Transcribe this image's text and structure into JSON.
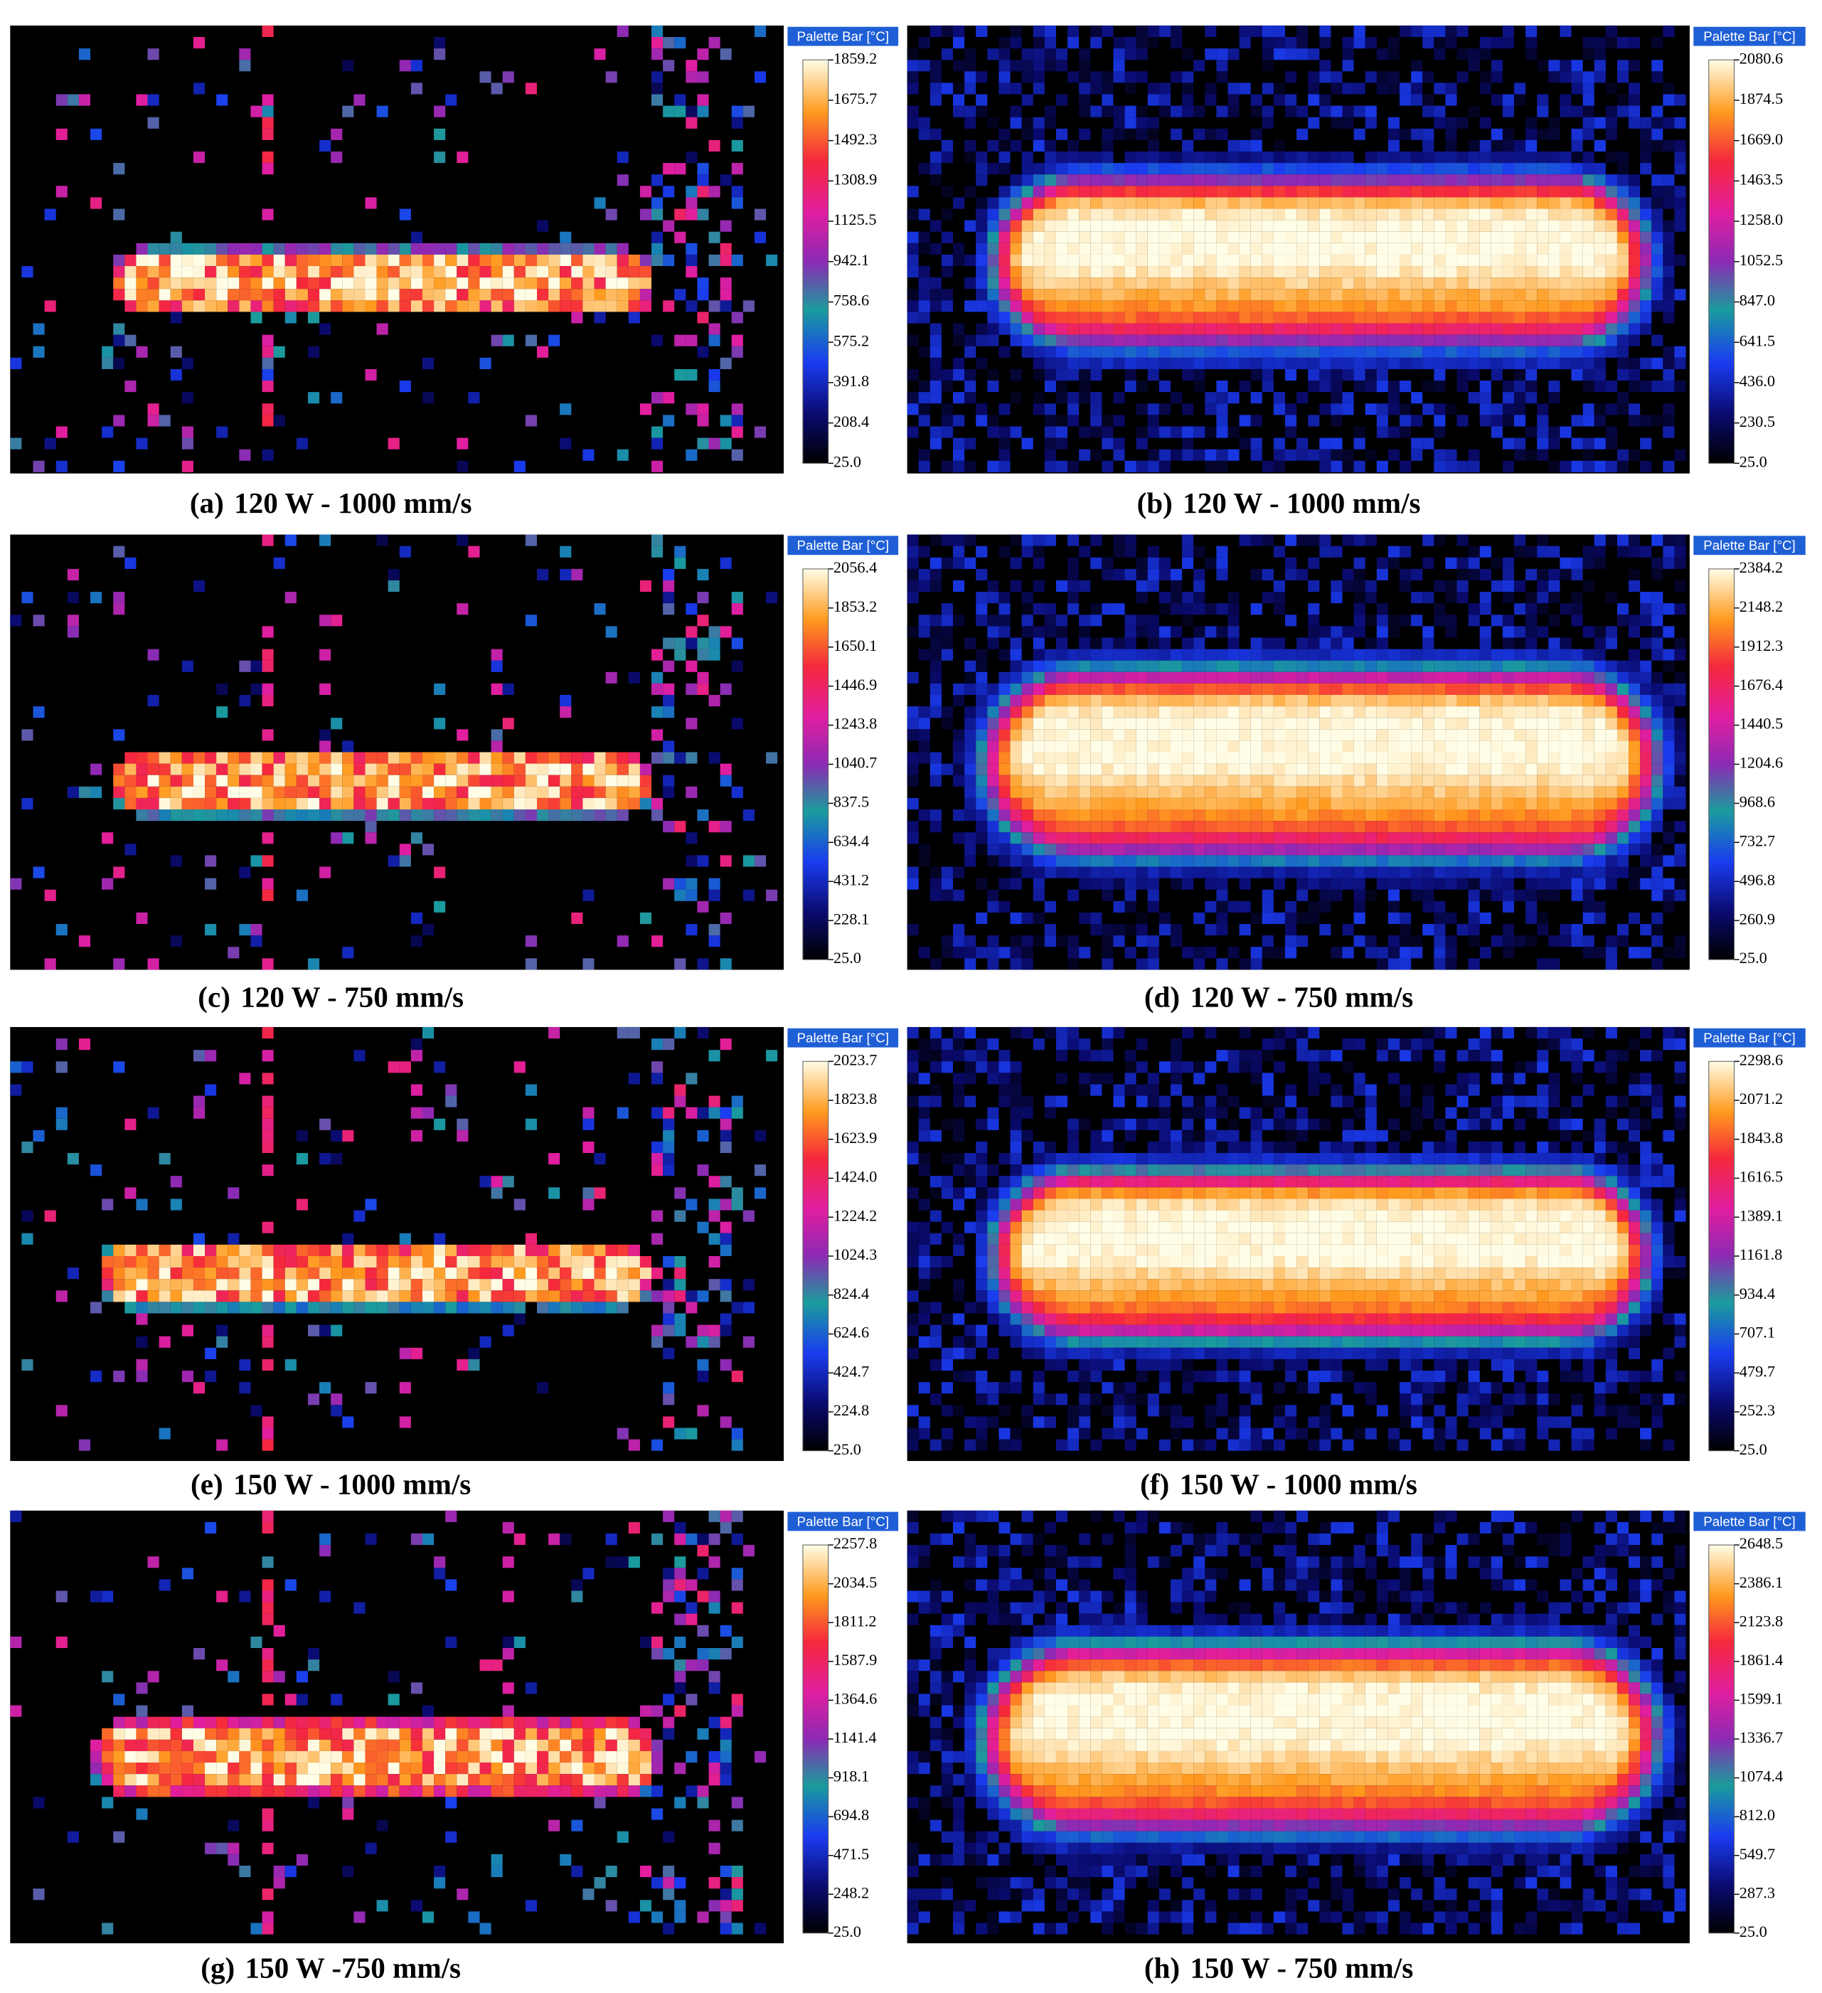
{
  "figure": {
    "panels": [
      {
        "label": "(a)",
        "caption": "120 W - 1000 mm/s",
        "palette_title": "Palette Bar [°C]",
        "ticks": [
          "1859.2",
          "1675.7",
          "1492.3",
          "1308.9",
          "1125.5",
          "942.1",
          "758.6",
          "575.2",
          "391.8",
          "208.4",
          "25.0"
        ]
      },
      {
        "label": "(b)",
        "caption": "120 W - 1000 mm/s",
        "palette_title": "Palette Bar [°C]",
        "ticks": [
          "2080.6",
          "1874.5",
          "1669.0",
          "1463.5",
          "1258.0",
          "1052.5",
          "847.0",
          "641.5",
          "436.0",
          "230.5",
          "25.0"
        ]
      },
      {
        "label": "(c)",
        "caption": "120 W - 750 mm/s",
        "palette_title": "Palette Bar [°C]",
        "ticks": [
          "2056.4",
          "1853.2",
          "1650.1",
          "1446.9",
          "1243.8",
          "1040.7",
          "837.5",
          "634.4",
          "431.2",
          "228.1",
          "25.0"
        ]
      },
      {
        "label": "(d)",
        "caption": "120 W - 750 mm/s",
        "palette_title": "Palette Bar [°C]",
        "ticks": [
          "2384.2",
          "2148.2",
          "1912.3",
          "1676.4",
          "1440.5",
          "1204.6",
          "968.6",
          "732.7",
          "496.8",
          "260.9",
          "25.0"
        ]
      },
      {
        "label": "(e)",
        "caption": "150 W - 1000 mm/s",
        "palette_title": "Palette Bar [°C]",
        "ticks": [
          "2023.7",
          "1823.8",
          "1623.9",
          "1424.0",
          "1224.2",
          "1024.3",
          "824.4",
          "624.6",
          "424.7",
          "224.8",
          "25.0"
        ]
      },
      {
        "label": "(f)",
        "caption": "150 W - 1000 mm/s",
        "palette_title": "Palette Bar [°C]",
        "ticks": [
          "2298.6",
          "2071.2",
          "1843.8",
          "1616.5",
          "1389.1",
          "1161.8",
          "934.4",
          "707.1",
          "479.7",
          "252.3",
          "25.0"
        ]
      },
      {
        "label": "(g)",
        "caption": "150 W -750 mm/s",
        "palette_title": "Palette Bar [°C]",
        "ticks": [
          "2257.8",
          "2034.5",
          "1811.2",
          "1587.9",
          "1364.6",
          "1141.4",
          "918.1",
          "694.8",
          "471.5",
          "248.2",
          "25.0"
        ]
      },
      {
        "label": "(h)",
        "caption": "150 W - 750 mm/s",
        "palette_title": "Palette Bar [°C]",
        "ticks": [
          "2648.5",
          "2386.1",
          "2123.8",
          "1861.4",
          "1599.1",
          "1336.7",
          "1074.4",
          "812.0",
          "549.7",
          "287.3",
          "25.0"
        ]
      }
    ]
  }
}
